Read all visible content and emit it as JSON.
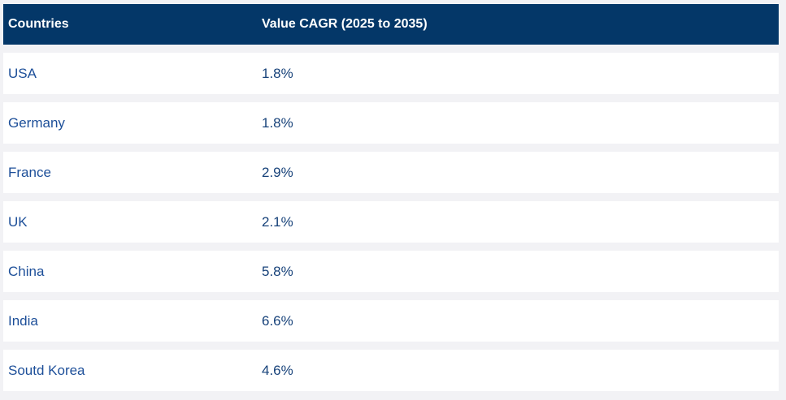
{
  "chart_data": {
    "type": "table",
    "title": "",
    "columns": [
      "Countries",
      "Value CAGR (2025 to 2035)"
    ],
    "rows": [
      {
        "country": "USA",
        "cagr": "1.8%"
      },
      {
        "country": "Germany",
        "cagr": "1.8%"
      },
      {
        "country": "France",
        "cagr": "2.9%"
      },
      {
        "country": "UK",
        "cagr": "2.1%"
      },
      {
        "country": "China",
        "cagr": "5.8%"
      },
      {
        "country": "India",
        "cagr": "6.6%"
      },
      {
        "country": "Soutd Korea",
        "cagr": "4.6%"
      }
    ],
    "values_numeric_percent": [
      1.8,
      1.8,
      2.9,
      2.1,
      5.8,
      6.6,
      4.6
    ]
  },
  "colors": {
    "header_bg": "#043768",
    "header_text": "#ffffff",
    "country_text": "#1d4f99",
    "value_text": "#164179",
    "row_bg": "#ffffff",
    "page_bg": "#f2f2f5"
  }
}
